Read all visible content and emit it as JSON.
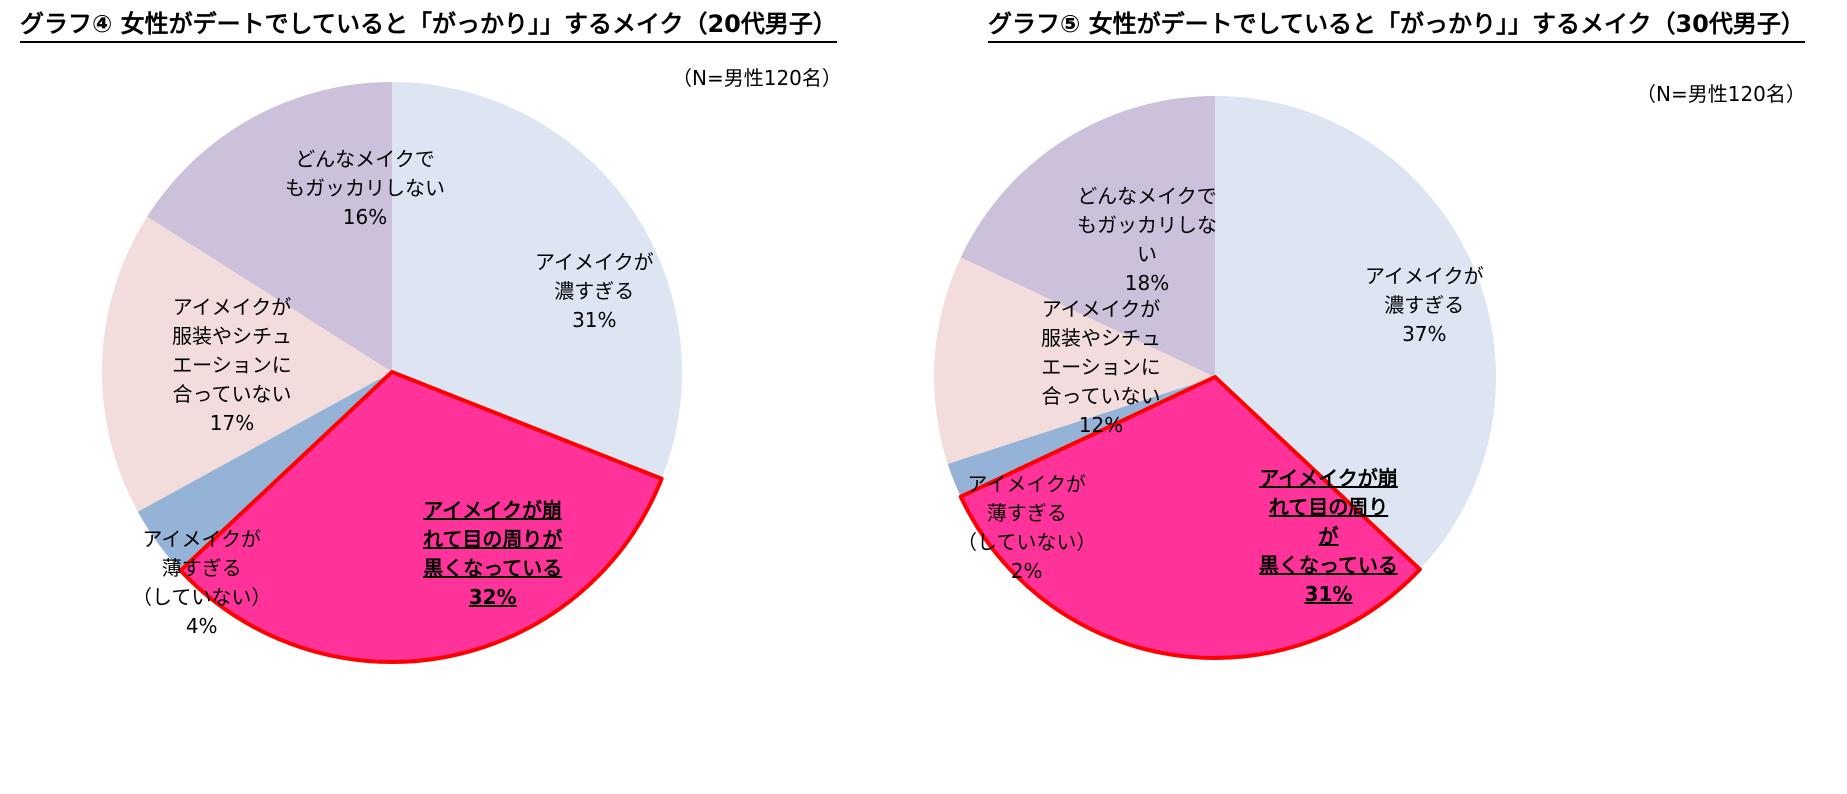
{
  "charts": [
    {
      "title": "グラフ④ 女性がデートでしていると「がっかり」」するメイク（20代男子）",
      "note": "（N=男性120名）",
      "labels": [
        {
          "lines": [
            "アイメイクが",
            "濃すぎる"
          ],
          "value": "31%"
        },
        {
          "lines": [
            "アイメイクが崩",
            "れて目の周りが",
            "黒くなっている"
          ],
          "value": "32%"
        },
        {
          "lines": [
            "アイメイクが",
            "薄すぎる",
            "（していない）"
          ],
          "value": "4%"
        },
        {
          "lines": [
            "アイメイクが",
            "服装やシチュ",
            "エーションに",
            "合っていない"
          ],
          "value": "17%"
        },
        {
          "lines": [
            "どんなメイクで",
            "もガッカリしない"
          ],
          "value": "16%"
        }
      ]
    },
    {
      "title": "グラフ⑤ 女性がデートでしていると「がっかり」」するメイク（30代男子）",
      "note": "（N=男性120名）",
      "labels": [
        {
          "lines": [
            "アイメイクが",
            "濃すぎる"
          ],
          "value": "37%"
        },
        {
          "lines": [
            "アイメイクが崩",
            "れて目の周り",
            "が",
            "黒くなっている"
          ],
          "value": "31%"
        },
        {
          "lines": [
            "アイメイクが",
            "薄すぎる",
            "（していない）"
          ],
          "value": "2%"
        },
        {
          "lines": [
            "アイメイクが",
            "服装やシチュ",
            "エーションに",
            "合っていない"
          ],
          "value": "12%"
        },
        {
          "lines": [
            "どんなメイクで",
            "もガッカリしな",
            "い"
          ],
          "value": "18%"
        }
      ]
    }
  ],
  "chart_data": [
    {
      "type": "pie",
      "title": "グラフ④ 女性がデートでしていると「がっかり」」するメイク（20代男子）",
      "categories": [
        "アイメイクが濃すぎる",
        "アイメイクが崩れて目の周りが黒くなっている",
        "アイメイクが薄すぎる（していない）",
        "アイメイクが服装やシチュエーションに合っていない",
        "どんなメイクでもガッカリしない"
      ],
      "values": [
        31,
        32,
        4,
        17,
        16
      ],
      "unit": "%",
      "colors": [
        "#DCE5F1",
        "#FF3399",
        "#95B3D7",
        "#F2DDDC",
        "#CCC0DA"
      ],
      "highlight": "アイメイクが崩れて目の周りが黒くなっている",
      "highlight_stroke": "#FF0000"
    },
    {
      "type": "pie",
      "title": "グラフ⑤ 女性がデートでしていると「がっかり」」するメイク（30代男子）",
      "categories": [
        "アイメイクが濃すぎる",
        "アイメイクが崩れて目の周りが黒くなっている",
        "アイメイクが薄すぎる（していない）",
        "アイメイクが服装やシチュエーションに合っていない",
        "どんなメイクでもガッカリしない"
      ],
      "values": [
        37,
        31,
        2,
        12,
        18
      ],
      "unit": "%",
      "colors": [
        "#DCE5F1",
        "#FF3399",
        "#95B3D7",
        "#F2DDDC",
        "#CCC0DA"
      ],
      "highlight": "アイメイクが崩れて目の周りが黒くなっている",
      "highlight_stroke": "#FF0000"
    }
  ]
}
